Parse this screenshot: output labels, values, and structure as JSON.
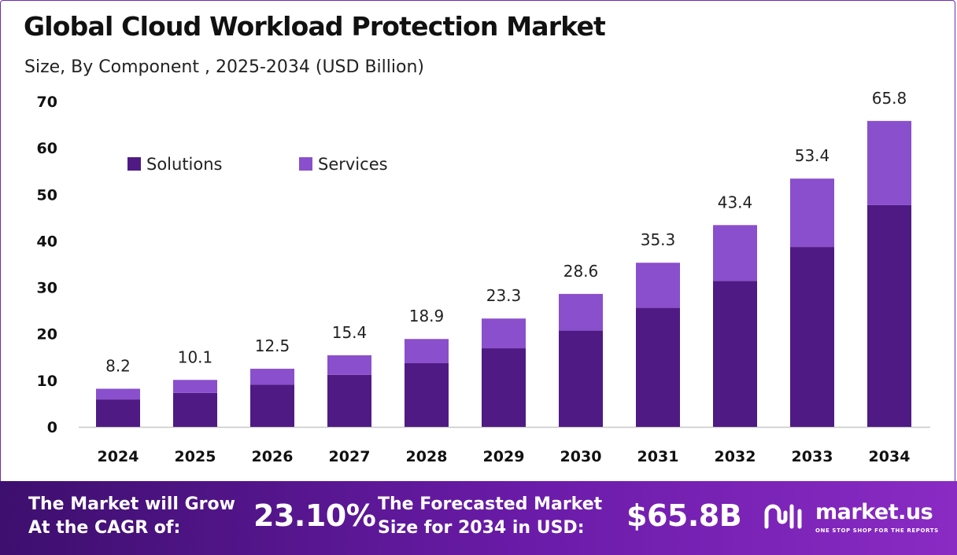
{
  "title": "Global Cloud Workload Protection Market",
  "subtitle": "Size, By Component , 2025-2034 (USD Billion)",
  "colors": {
    "solutions": "#4f1a84",
    "services": "#8a4fcc",
    "axis": "#c8c8c8"
  },
  "chart_data": {
    "type": "bar",
    "stacked": true,
    "categories": [
      "2024",
      "2025",
      "2026",
      "2027",
      "2028",
      "2029",
      "2030",
      "2031",
      "2032",
      "2033",
      "2034"
    ],
    "series": [
      {
        "name": "Solutions",
        "values": [
          5.9,
          7.3,
          9.1,
          11.2,
          13.7,
          16.9,
          20.7,
          25.6,
          31.4,
          38.7,
          47.7
        ]
      },
      {
        "name": "Services",
        "values": [
          2.3,
          2.8,
          3.4,
          4.2,
          5.2,
          6.4,
          7.9,
          9.7,
          12.0,
          14.7,
          18.1
        ]
      }
    ],
    "totals": [
      8.2,
      10.1,
      12.5,
      15.4,
      18.9,
      23.3,
      28.6,
      35.3,
      43.4,
      53.4,
      65.8
    ],
    "total_labels": [
      "8.2",
      "10.1",
      "12.5",
      "15.4",
      "18.9",
      "23.3",
      "28.6",
      "35.3",
      "43.4",
      "53.4",
      "65.8"
    ],
    "yticks": [
      "0",
      "10",
      "20",
      "30",
      "40",
      "50",
      "60",
      "70"
    ],
    "ylim": [
      0,
      70
    ],
    "grid": false,
    "legend_position": "top-left"
  },
  "footer": {
    "cagr_line1": "The Market will Grow",
    "cagr_line2": "At the CAGR of:",
    "cagr_value": "23.10%",
    "forecast_line1": "The Forecasted Market",
    "forecast_line2": "Size for 2034 in USD:",
    "forecast_value": "$65.8B",
    "brand_name": "market.us",
    "brand_tagline": "ONE STOP SHOP FOR THE REPORTS"
  }
}
